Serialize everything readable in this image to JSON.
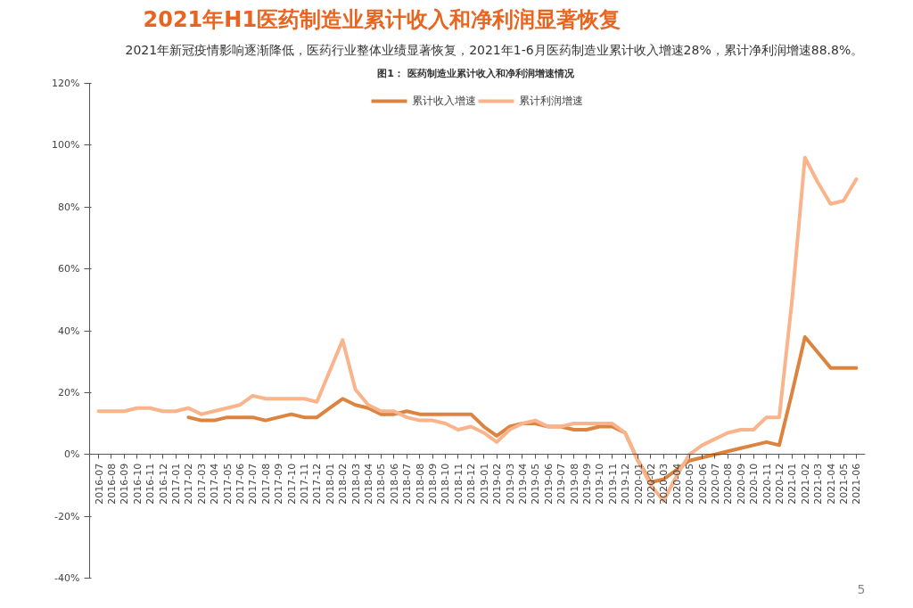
{
  "chart_data": {
    "type": "line",
    "title": "2021年H1医药制造业累计收入和净利润显著恢复",
    "subtitle": "2021年新冠疫情影响逐渐降低，医药行业整体业绩显著恢复，2021年1-6月医药制造业累计收入增速28%，累计净利润增速88.8%。",
    "annotations": [
      "图1：  医药制造业累计收入和净利润增速情况",
      "5"
    ],
    "categories": [
      "2016-07",
      "2016-08",
      "2016-09",
      "2016-10",
      "2016-11",
      "2016-12",
      "2017-01",
      "2017-02",
      "2017-03",
      "2017-04",
      "2017-05",
      "2017-06",
      "2017-07",
      "2017-08",
      "2017-09",
      "2017-10",
      "2017-11",
      "2017-12",
      "2018-01",
      "2018-02",
      "2018-03",
      "2018-04",
      "2018-05",
      "2018-06",
      "2018-07",
      "2018-08",
      "2018-09",
      "2018-10",
      "2018-11",
      "2018-12",
      "2019-01",
      "2019-02",
      "2019-03",
      "2019-04",
      "2019-05",
      "2019-06",
      "2019-07",
      "2019-08",
      "2019-09",
      "2019-10",
      "2019-11",
      "2019-12",
      "2020-01",
      "2020-02",
      "2020-03",
      "2020-04",
      "2020-05",
      "2020-06",
      "2020-07",
      "2020-08",
      "2020-09",
      "2020-10",
      "2020-11",
      "2020-12",
      "2021-01",
      "2021-02",
      "2021-03",
      "2021-04",
      "2021-05",
      "2021-06"
    ],
    "series": [
      {
        "name": "累计收入增速",
        "color": "#dd8340",
        "values": [
          null,
          null,
          null,
          null,
          null,
          null,
          null,
          12,
          11,
          11,
          12,
          12,
          12,
          11,
          12,
          13,
          12,
          12,
          15,
          18,
          16,
          15,
          13,
          13,
          14,
          13,
          13,
          13,
          13,
          13,
          9,
          6,
          9,
          10,
          10,
          9,
          9,
          8,
          8,
          9,
          9,
          7,
          -2,
          -9,
          -8,
          -5,
          -2,
          -1,
          0,
          1,
          2,
          3,
          4,
          3,
          20,
          38,
          33,
          28,
          28,
          28
        ]
      },
      {
        "name": "累计利润增速",
        "color": "#f9b48c",
        "values": [
          14,
          14,
          14,
          15,
          15,
          14,
          14,
          15,
          13,
          14,
          15,
          16,
          19,
          18,
          18,
          18,
          18,
          17,
          27,
          37,
          21,
          16,
          14,
          14,
          12,
          11,
          11,
          10,
          8,
          9,
          7,
          4,
          8,
          10,
          11,
          9,
          9,
          10,
          10,
          10,
          10,
          7,
          -2,
          -10,
          -15,
          -7,
          0,
          3,
          5,
          7,
          8,
          8,
          12,
          12,
          50,
          96,
          88,
          81,
          82,
          89
        ]
      }
    ],
    "ylim": [
      -40,
      120
    ],
    "yticks": [
      {
        "value": -40,
        "label": "-40%"
      },
      {
        "value": -20,
        "label": "-20%"
      },
      {
        "value": 0,
        "label": "0%"
      },
      {
        "value": 20,
        "label": "20%"
      },
      {
        "value": 40,
        "label": "40%"
      },
      {
        "value": 60,
        "label": "60%"
      },
      {
        "value": 80,
        "label": "80%"
      },
      {
        "value": 100,
        "label": "100%"
      },
      {
        "value": 120,
        "label": "120%"
      }
    ],
    "grid": false,
    "legend": "top",
    "marker": "none",
    "line_style": "solid"
  }
}
